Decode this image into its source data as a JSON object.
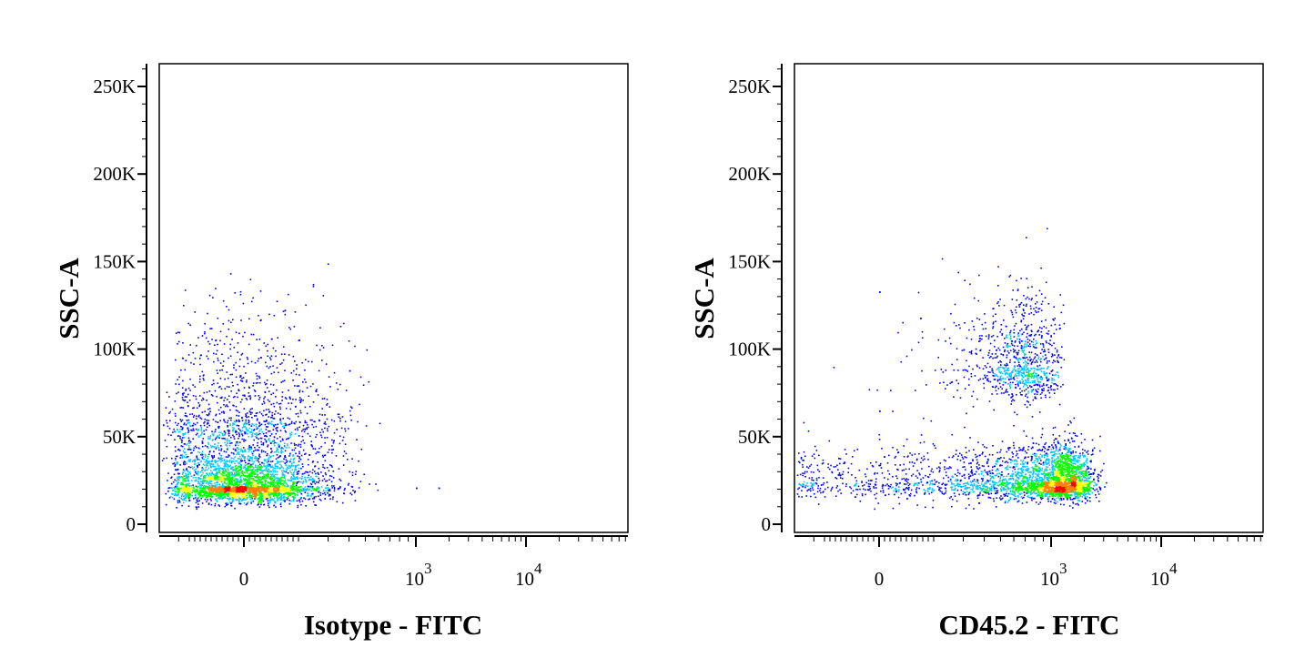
{
  "chart_data": [
    {
      "type": "scatter",
      "subtype": "flow-cytometry-density-dot-plot",
      "title": "",
      "xlabel": "Isotype - FITC",
      "ylabel": "SSC-A",
      "x_scale": "biexponential",
      "ylim": [
        0,
        262144
      ],
      "y_ticks": [
        {
          "value": 0,
          "label": "0"
        },
        {
          "value": 50000,
          "label": "50K"
        },
        {
          "value": 100000,
          "label": "100K"
        },
        {
          "value": 150000,
          "label": "150K"
        },
        {
          "value": 200000,
          "label": "200K"
        },
        {
          "value": 250000,
          "label": "250K"
        }
      ],
      "x_ticks": [
        {
          "value": 0,
          "label": "0"
        },
        {
          "value": 1000,
          "base": "10",
          "exp": "3"
        },
        {
          "value": 10000,
          "base": "10",
          "exp": "4"
        }
      ],
      "grid": false,
      "populations": [
        {
          "name": "",
          "x_center": 0,
          "y_center": 22000,
          "x_spread": 150,
          "y_spread": 9000,
          "weight": 0.72
        },
        {
          "name": "",
          "x_center": 10,
          "y_center": 60000,
          "x_spread": 180,
          "y_spread": 25000,
          "weight": 0.28
        }
      ],
      "outliers": [
        {
          "x": 400,
          "y": 88000
        },
        {
          "x": 230,
          "y": 40000
        },
        {
          "x": 1000,
          "y": 21000
        },
        {
          "x": 1600,
          "y": 21000
        }
      ],
      "colormap": [
        "#0000ff",
        "#00c8ff",
        "#00ff00",
        "#ffff00",
        "#ff8000",
        "#ff0000"
      ]
    },
    {
      "type": "scatter",
      "subtype": "flow-cytometry-density-dot-plot",
      "title": "",
      "xlabel": "CD45.2 - FITC",
      "ylabel": "SSC-A",
      "x_scale": "biexponential",
      "ylim": [
        0,
        262144
      ],
      "y_ticks": [
        {
          "value": 0,
          "label": "0"
        },
        {
          "value": 50000,
          "label": "50K"
        },
        {
          "value": 100000,
          "label": "100K"
        },
        {
          "value": 150000,
          "label": "150K"
        },
        {
          "value": 200000,
          "label": "200K"
        },
        {
          "value": 250000,
          "label": "250K"
        }
      ],
      "x_ticks": [
        {
          "value": 0,
          "label": "0"
        },
        {
          "value": 1000,
          "base": "10",
          "exp": "3"
        },
        {
          "value": 10000,
          "base": "10",
          "exp": "4"
        }
      ],
      "grid": false,
      "populations": [
        {
          "name": "",
          "x_center": 950,
          "y_center": 24000,
          "x_spread": 650,
          "y_spread": 9000,
          "weight": 0.78
        },
        {
          "name": "",
          "x_center": 650,
          "y_center": 90000,
          "x_spread": 220,
          "y_spread": 18000,
          "weight": 0.22
        }
      ],
      "outliers": [
        {
          "x": 0,
          "y": 133000
        },
        {
          "x": 150,
          "y": 118000
        },
        {
          "x": 300,
          "y": 100000
        },
        {
          "x": -150,
          "y": 38000
        },
        {
          "x": 0,
          "y": 65000
        },
        {
          "x": -40,
          "y": 20000
        },
        {
          "x": 20,
          "y": 17000
        },
        {
          "x": 60,
          "y": 19000
        },
        {
          "x": -90,
          "y": 16000
        },
        {
          "x": 100,
          "y": 15000
        }
      ],
      "colormap": [
        "#0000ff",
        "#00c8ff",
        "#00ff00",
        "#ffff00",
        "#ff8000",
        "#ff0000"
      ]
    }
  ]
}
